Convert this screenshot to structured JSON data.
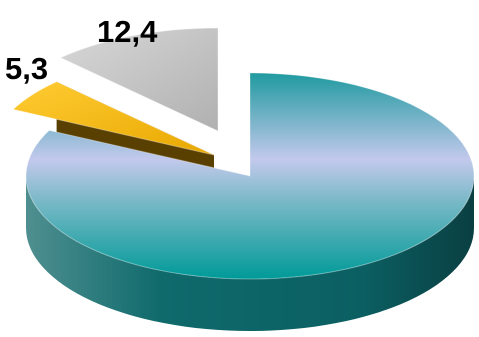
{
  "chart_data": {
    "type": "pie",
    "style": "3d-exploded",
    "title": "",
    "slices": [
      {
        "label": "",
        "value": 82.3,
        "display": "",
        "color": "#19a3a8"
      },
      {
        "label": "",
        "value": 5.3,
        "display": "5,3",
        "color": "#f0b400"
      },
      {
        "label": "",
        "value": 12.4,
        "display": "12,4",
        "color": "#c0c0c0"
      }
    ],
    "legend": "none"
  }
}
